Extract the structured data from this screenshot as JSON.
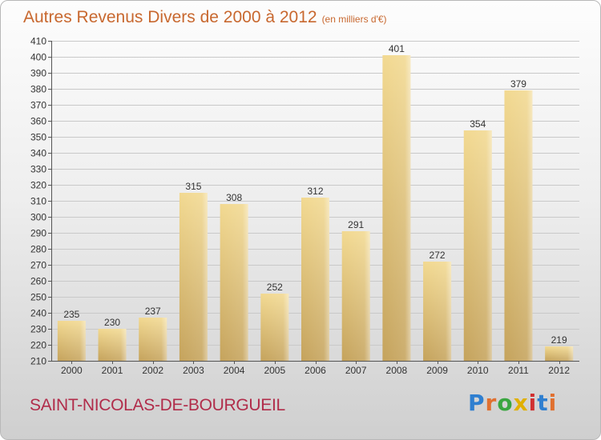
{
  "header": {
    "title": "Autres Revenus Divers de 2000 à 2012",
    "subtitle": "(en milliers d'€)"
  },
  "footer": {
    "city": "SAINT-NICOLAS-DE-BOURGUEIL",
    "logo": "Proxiti"
  },
  "colors": {
    "title": "#c8682f",
    "city": "#b12c4a",
    "bar_light": "#f2d991",
    "bar_dark": "#c5a35c",
    "logo": [
      "#2f7fd0",
      "#e07030",
      "#3aa640",
      "#e0b000",
      "#d03030",
      "#2f7fd0",
      "#e07030"
    ]
  },
  "chart_data": {
    "type": "bar",
    "categories": [
      "2000",
      "2001",
      "2002",
      "2003",
      "2004",
      "2005",
      "2006",
      "2007",
      "2008",
      "2009",
      "2010",
      "2011",
      "2012"
    ],
    "values": [
      235,
      230,
      237,
      315,
      308,
      252,
      312,
      291,
      401,
      272,
      354,
      379,
      219
    ],
    "title": "Autres Revenus Divers de 2000 à 2012",
    "xlabel": "",
    "ylabel": "",
    "ylim": [
      210,
      410
    ],
    "yticks": [
      210,
      220,
      230,
      240,
      250,
      260,
      270,
      280,
      290,
      300,
      310,
      320,
      330,
      340,
      350,
      360,
      370,
      380,
      390,
      400,
      410
    ],
    "grid": true,
    "data_labels": true
  }
}
